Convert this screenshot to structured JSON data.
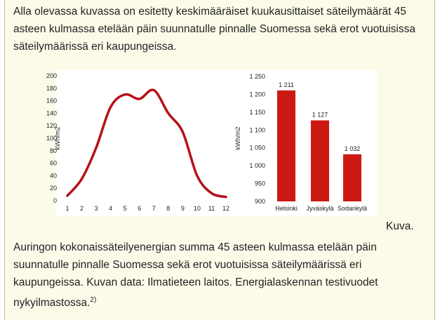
{
  "text": {
    "intro": "Alla olevassa kuvassa on esitetty keskimääräiset kuukausittaiset säteilymäärät 45 asteen kulmassa etelään päin suunnatulle pinnalle Suomessa sekä erot vuotuisissa säteilymäärissä eri kaupungeissa.",
    "caption_label": "Kuva.",
    "caption": "Auringon kokonaissäteilyenergian summa 45 asteen kulmassa etelään päin suunnatulle pinnalle Suomessa sekä erot vuotuisissa säteilymäärissä eri kaupungeissa. Kuvan data: Ilmatieteen laitos. Energialaskennan testivuodet nykyilmastossa.",
    "footnote_ref": "2)"
  },
  "colors": {
    "series": "#b5121b",
    "bar": "#cc1a12",
    "background": "#fcfbea"
  },
  "chart_data": [
    {
      "type": "line",
      "title": "",
      "xlabel": "",
      "ylabel": "kWh/m2",
      "x": [
        1,
        2,
        3,
        4,
        5,
        6,
        7,
        8,
        9,
        10,
        11,
        12
      ],
      "xticks": [
        "1",
        "2",
        "3",
        "4",
        "5",
        "6",
        "7",
        "8",
        "9",
        "10",
        "11",
        "12"
      ],
      "yticks": [
        "0",
        "20",
        "40",
        "60",
        "80",
        "100",
        "120",
        "140",
        "160",
        "180",
        "200"
      ],
      "ylim": [
        0,
        200
      ],
      "series": [
        {
          "values": [
            8,
            35,
            85,
            150,
            170,
            163,
            177,
            140,
            110,
            40,
            12,
            6
          ]
        }
      ],
      "grid": false
    },
    {
      "type": "bar",
      "title": "",
      "xlabel": "",
      "ylabel": "kWh/m2",
      "categories": [
        "Helsinki",
        "Jyväskylä",
        "Sodankylä"
      ],
      "values": [
        1211,
        1127,
        1032
      ],
      "value_labels": [
        "1 211",
        "1 127",
        "1 032"
      ],
      "yticks": [
        "900",
        "950",
        "1 000",
        "1 050",
        "1 100",
        "1 150",
        "1 200",
        "1 250"
      ],
      "ylim": [
        900,
        1250
      ],
      "grid": false
    }
  ]
}
